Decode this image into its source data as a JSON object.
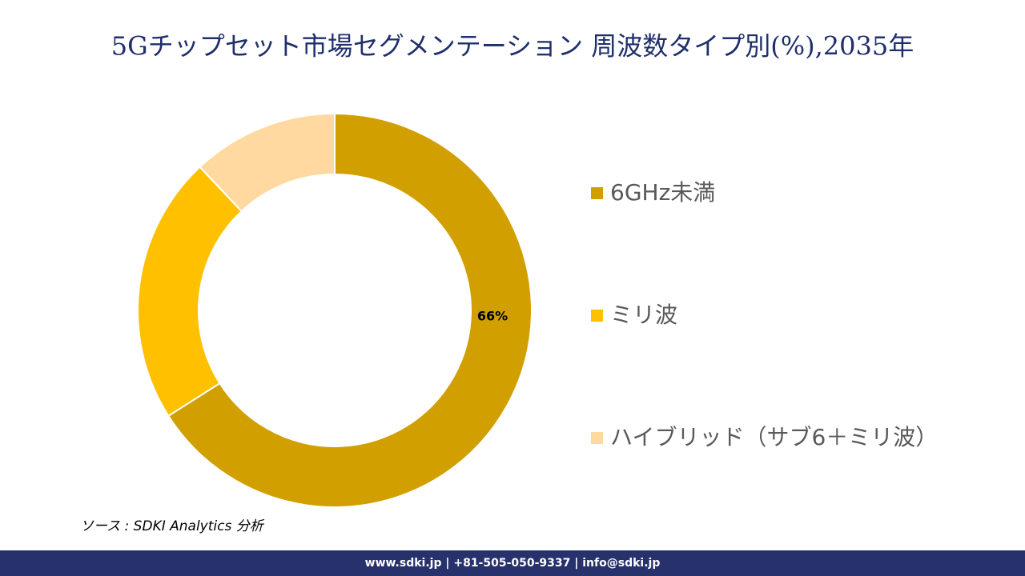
{
  "chart_data": {
    "type": "donut",
    "title": "5Gチップセット市場セグメンテーション 周波数タイプ別(%),2035年",
    "categories": [
      "6GHz未満",
      "ミリ波",
      "ハイブリッド（サブ6＋ミリ波）"
    ],
    "values": [
      66,
      22,
      12
    ],
    "value_labels": [
      "66%",
      null,
      null
    ],
    "colors": [
      "#d1a000",
      "#ffc000",
      "#ffd9a0"
    ],
    "legend": "right"
  },
  "source": "ソース : SDKI Analytics 分析",
  "footer": "www.sdki.jp | +81-505-050-9337 | info@sdki.jp"
}
